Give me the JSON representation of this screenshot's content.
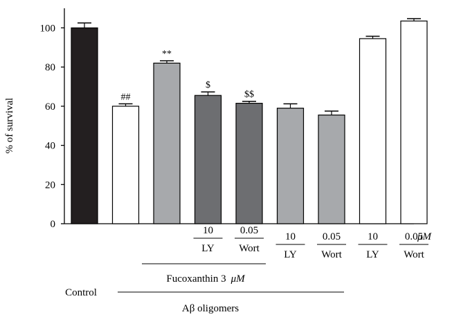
{
  "chart_data": {
    "type": "bar",
    "ylabel": "% of survival",
    "ylim": [
      0,
      110
    ],
    "yticks": [
      0,
      20,
      40,
      60,
      80,
      100
    ],
    "grid": false,
    "bars": [
      {
        "value": 100,
        "error": 2.5,
        "color": "#231f20",
        "annotation": ""
      },
      {
        "value": 60,
        "error": 1.2,
        "color": "#ffffff",
        "annotation": "##"
      },
      {
        "value": 82,
        "error": 1.2,
        "color": "#a7a9ac",
        "annotation": "**"
      },
      {
        "value": 65.5,
        "error": 1.8,
        "color": "#6d6e71",
        "annotation": "$"
      },
      {
        "value": 61.5,
        "error": 1.0,
        "color": "#6d6e71",
        "annotation": "$$"
      },
      {
        "value": 59,
        "error": 2.2,
        "color": "#a7a9ac",
        "annotation": ""
      },
      {
        "value": 55.5,
        "error": 2.0,
        "color": "#a7a9ac",
        "annotation": ""
      },
      {
        "value": 94.5,
        "error": 1.2,
        "color": "#ffffff",
        "annotation": ""
      },
      {
        "value": 103.5,
        "error": 1.2,
        "color": "#ffffff",
        "annotation": ""
      }
    ],
    "dose_labels": [
      {
        "bar": 3,
        "dose": "10",
        "inhibitor": "LY"
      },
      {
        "bar": 4,
        "dose": "0.05",
        "inhibitor": "Wort"
      },
      {
        "bar": 5,
        "dose": "10",
        "inhibitor": "LY"
      },
      {
        "bar": 6,
        "dose": "0.05",
        "inhibitor": "Wort"
      },
      {
        "bar": 7,
        "dose": "10",
        "inhibitor": "LY"
      },
      {
        "bar": 8,
        "dose": "0.05",
        "inhibitor": "Wort"
      }
    ],
    "dose_unit": "μM",
    "group_labels": {
      "control": "Control",
      "fucoxanthin": "Fucoxanthin 3",
      "fucoxanthin_unit": "μM",
      "abeta": "Aβ oligomers"
    }
  }
}
